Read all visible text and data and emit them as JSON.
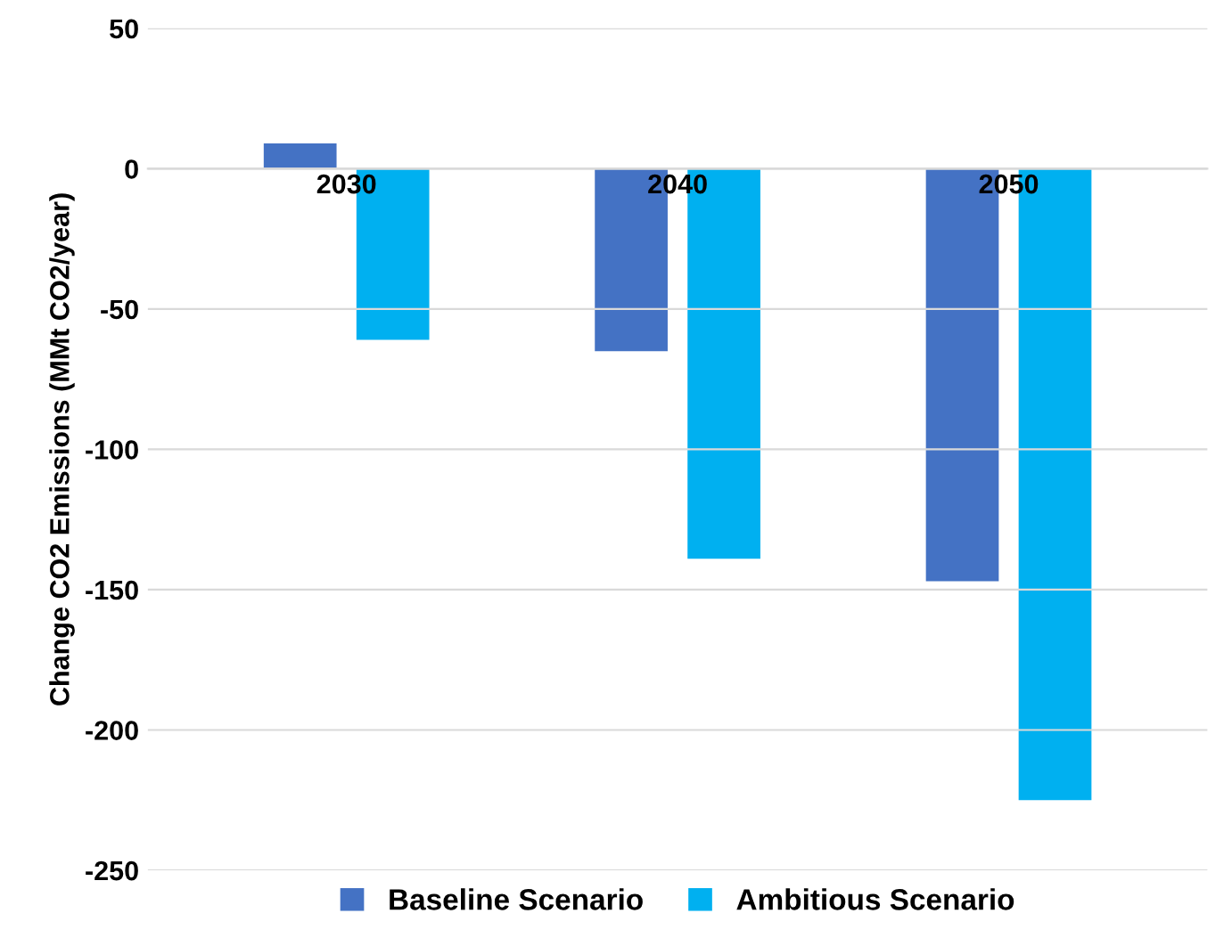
{
  "chart_data": {
    "type": "bar",
    "ylabel": "Change CO2 Emissions (MMt CO2/year)",
    "categories": [
      "2030",
      "2040",
      "2050"
    ],
    "series": [
      {
        "name": "Baseline Scenario",
        "color": "#4472c4",
        "values": [
          9,
          -65,
          -147
        ]
      },
      {
        "name": "Ambitious Scenario",
        "color": "#00b0f0",
        "values": [
          -61,
          -139,
          -225
        ]
      }
    ],
    "ylim": [
      -250,
      50
    ],
    "yticks": [
      -250,
      -200,
      -150,
      -100,
      -50,
      0,
      50
    ],
    "grid": "y",
    "legend": "bottom"
  }
}
